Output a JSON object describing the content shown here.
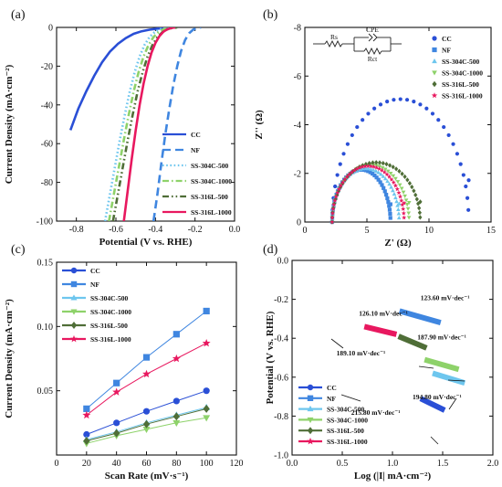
{
  "chart_data": [
    {
      "panel": "(a)",
      "type": "line",
      "xlabel": "Potential (V vs. RHE)",
      "ylabel": "Current Density (mA·cm⁻²)",
      "xlim": [
        -0.9,
        0.0
      ],
      "ylim": [
        -100,
        0
      ],
      "xticks": [
        -0.8,
        -0.6,
        -0.4,
        -0.2,
        0.0
      ],
      "xtick_labels": [
        "-0.8",
        "-0.6",
        "-0.4",
        "-0.2",
        "0.0"
      ],
      "yticks": [
        0,
        -20,
        -40,
        -60,
        -80,
        -100
      ],
      "ytick_labels": [
        "0",
        "-20",
        "-40",
        "-60",
        "-80",
        "-100"
      ],
      "legend_position": "bottom-right",
      "series": [
        {
          "name": "CC",
          "color": "#2a4fd6",
          "dash": "solid",
          "x": [
            -0.83,
            -0.79,
            -0.75,
            -0.71,
            -0.67,
            -0.63,
            -0.59,
            -0.55,
            -0.51,
            -0.47,
            -0.43,
            -0.39,
            -0.35,
            -0.33,
            -0.31
          ],
          "y": [
            -53,
            -42,
            -33,
            -25,
            -18,
            -12.5,
            -8.5,
            -5.5,
            -3.3,
            -2.0,
            -1.2,
            -0.6,
            -0.3,
            -0.15,
            0
          ]
        },
        {
          "name": "NF",
          "color": "#3f86e0",
          "dash": "long",
          "x": [
            -0.41,
            -0.39,
            -0.37,
            -0.35,
            -0.33,
            -0.31,
            -0.29,
            -0.27,
            -0.25,
            -0.23,
            -0.21,
            -0.19,
            -0.17
          ],
          "y": [
            -100,
            -86,
            -70,
            -55,
            -42,
            -30,
            -20,
            -12,
            -6.5,
            -3,
            -1.2,
            -0.4,
            0
          ]
        },
        {
          "name": "SS-304C-500",
          "color": "#6ec6ee",
          "dash": "dot",
          "x": [
            -0.655,
            -0.63,
            -0.605,
            -0.58,
            -0.555,
            -0.53,
            -0.505,
            -0.48,
            -0.455,
            -0.43,
            -0.405,
            -0.38,
            -0.355,
            -0.33
          ],
          "y": [
            -100,
            -86,
            -72,
            -58,
            -45,
            -33,
            -23,
            -15,
            -9,
            -5,
            -2.5,
            -1,
            -0.3,
            0
          ]
        },
        {
          "name": "SS-304C-1000",
          "color": "#8ed26a",
          "dash": "dashdot",
          "x": [
            -0.635,
            -0.61,
            -0.585,
            -0.56,
            -0.535,
            -0.51,
            -0.485,
            -0.46,
            -0.435,
            -0.41,
            -0.385,
            -0.36,
            -0.335,
            -0.31
          ],
          "y": [
            -100,
            -86,
            -72,
            -58,
            -45,
            -33,
            -23,
            -15,
            -9,
            -5,
            -2.5,
            -1,
            -0.3,
            0
          ]
        },
        {
          "name": "SS-316L-500",
          "color": "#4f6e37",
          "dash": "dashdotdot",
          "x": [
            -0.615,
            -0.59,
            -0.565,
            -0.54,
            -0.515,
            -0.49,
            -0.465,
            -0.44,
            -0.415,
            -0.39,
            -0.365,
            -0.34,
            -0.315,
            -0.29
          ],
          "y": [
            -100,
            -86,
            -72,
            -58,
            -45,
            -33,
            -23,
            -15,
            -9,
            -5,
            -2.5,
            -1,
            -0.3,
            0
          ]
        },
        {
          "name": "SS-316L-1000",
          "color": "#e8185f",
          "dash": "solid",
          "x": [
            -0.56,
            -0.54,
            -0.52,
            -0.5,
            -0.48,
            -0.46,
            -0.44,
            -0.42,
            -0.4,
            -0.38,
            -0.36,
            -0.34,
            -0.32,
            -0.3
          ],
          "y": [
            -100,
            -84,
            -68,
            -53,
            -40,
            -29,
            -20,
            -13,
            -8,
            -4.5,
            -2.2,
            -1,
            -0.3,
            0
          ]
        }
      ]
    },
    {
      "panel": "(b)",
      "type": "scatter",
      "xlabel": "Z' (Ω)",
      "ylabel": "Z'' (Ω)",
      "xlim": [
        0,
        15
      ],
      "ylim": [
        0,
        -8
      ],
      "xticks": [
        0,
        5,
        10,
        15
      ],
      "xtick_labels": [
        "0",
        "5",
        "10",
        "15"
      ],
      "yticks": [
        0,
        -2,
        -4,
        -6,
        -8
      ],
      "ytick_labels": [
        "0",
        "-2",
        "-4",
        "-6",
        "-8"
      ],
      "legend_position": "top-right",
      "circuit": {
        "labels": [
          "Rs",
          "CPE",
          "Rct"
        ]
      },
      "series": [
        {
          "name": "CC",
          "color": "#2a4fd6",
          "marker": "circle",
          "arc": {
            "x_start": 2.2,
            "x_end": 13.2,
            "peak": 5.05
          }
        },
        {
          "name": "NF",
          "color": "#3f86e0",
          "marker": "square",
          "arc": {
            "x_start": 2.2,
            "x_end": 6.9,
            "peak": 2.15
          }
        },
        {
          "name": "SS-304C-500",
          "color": "#6ec6ee",
          "marker": "triangle-up",
          "arc": {
            "x_start": 2.2,
            "x_end": 7.6,
            "peak": 2.2
          }
        },
        {
          "name": "SS-304C-1000",
          "color": "#8ed26a",
          "marker": "triangle-down",
          "arc": {
            "x_start": 2.2,
            "x_end": 8.4,
            "peak": 2.35
          }
        },
        {
          "name": "SS-316L-500",
          "color": "#4f6e37",
          "marker": "diamond",
          "arc": {
            "x_start": 2.2,
            "x_end": 9.3,
            "peak": 2.45
          }
        },
        {
          "name": "SS-316L-1000",
          "color": "#e8185f",
          "marker": "star",
          "arc": {
            "x_start": 2.2,
            "x_end": 8.0,
            "peak": 2.3
          }
        }
      ]
    },
    {
      "panel": "(c)",
      "type": "line",
      "xlabel": "Scan Rate (mV·s⁻¹)",
      "ylabel": "Current Density (mA·cm⁻²)",
      "xlim": [
        0,
        120
      ],
      "ylim": [
        0,
        0.15
      ],
      "xticks": [
        0,
        20,
        40,
        60,
        80,
        100,
        120
      ],
      "xtick_labels": [
        "0",
        "20",
        "40",
        "60",
        "80",
        "100",
        "120"
      ],
      "yticks": [
        0.05,
        0.1,
        0.15
      ],
      "ytick_labels": [
        "0.05",
        "0.10",
        "0.15"
      ],
      "legend_position": "top-left",
      "x": [
        20,
        40,
        60,
        80,
        100
      ],
      "series": [
        {
          "name": "CC",
          "color": "#2a4fd6",
          "marker": "circle",
          "values": [
            0.016,
            0.025,
            0.034,
            0.042,
            0.05
          ]
        },
        {
          "name": "NF",
          "color": "#3f86e0",
          "marker": "square",
          "values": [
            0.036,
            0.056,
            0.076,
            0.094,
            0.112
          ]
        },
        {
          "name": "SS-304C-500",
          "color": "#6ec6ee",
          "marker": "triangle-up",
          "values": [
            0.012,
            0.018,
            0.025,
            0.031,
            0.037
          ]
        },
        {
          "name": "SS-304C-1000",
          "color": "#8ed26a",
          "marker": "triangle-down",
          "values": [
            0.009,
            0.015,
            0.02,
            0.025,
            0.029
          ]
        },
        {
          "name": "SS-316L-500",
          "color": "#4f6e37",
          "marker": "diamond",
          "values": [
            0.011,
            0.017,
            0.024,
            0.03,
            0.036
          ]
        },
        {
          "name": "SS-316L-1000",
          "color": "#e8185f",
          "marker": "star",
          "values": [
            0.031,
            0.049,
            0.063,
            0.075,
            0.087
          ]
        }
      ]
    },
    {
      "panel": "(d)",
      "type": "line",
      "xlabel": "Log (|I| mA·cm⁻²)",
      "ylabel": "Potential (V vs. RHE)",
      "xlim": [
        0.0,
        2.0
      ],
      "ylim": [
        -1.0,
        0.0
      ],
      "xticks": [
        0.0,
        0.5,
        1.0,
        1.5,
        2.0
      ],
      "xtick_labels": [
        "0.0",
        "0.5",
        "1.0",
        "1.5",
        "2.0"
      ],
      "yticks": [
        0.0,
        -0.2,
        -0.4,
        -0.6,
        -0.8,
        -1.0
      ],
      "ytick_labels": [
        "0.0",
        "-0.2",
        "-0.4",
        "-0.6",
        "-0.8",
        "-1.0"
      ],
      "legend_position": "bottom-left",
      "series": [
        {
          "name": "CC",
          "color": "#2a4fd6",
          "marker": "circle",
          "x": [
            1.28,
            1.52
          ],
          "y": [
            -0.71,
            -0.77
          ],
          "annotation": "215.80 mV·dec⁻¹"
        },
        {
          "name": "NF",
          "color": "#3f86e0",
          "marker": "square",
          "x": [
            1.07,
            1.48
          ],
          "y": [
            -0.26,
            -0.32
          ],
          "annotation": "123.60 mV·dec⁻¹"
        },
        {
          "name": "SS-304C-500",
          "color": "#6ec6ee",
          "marker": "triangle-up",
          "x": [
            1.4,
            1.72
          ],
          "y": [
            -0.58,
            -0.63
          ],
          "annotation": "194.80 mV·dec⁻¹"
        },
        {
          "name": "SS-304C-1000",
          "color": "#8ed26a",
          "marker": "triangle-down",
          "x": [
            1.32,
            1.66
          ],
          "y": [
            -0.51,
            -0.56
          ],
          "annotation": "187.90 mV·dec⁻¹"
        },
        {
          "name": "SS-316L-500",
          "color": "#4f6e37",
          "marker": "diamond",
          "x": [
            1.06,
            1.34
          ],
          "y": [
            -0.39,
            -0.45
          ],
          "annotation": "189.10 mV·dec⁻¹"
        },
        {
          "name": "SS-316L-1000",
          "color": "#e8185f",
          "marker": "star",
          "x": [
            0.72,
            1.04
          ],
          "y": [
            -0.34,
            -0.38
          ],
          "annotation": "126.10 mV·dec⁻¹"
        }
      ]
    }
  ]
}
